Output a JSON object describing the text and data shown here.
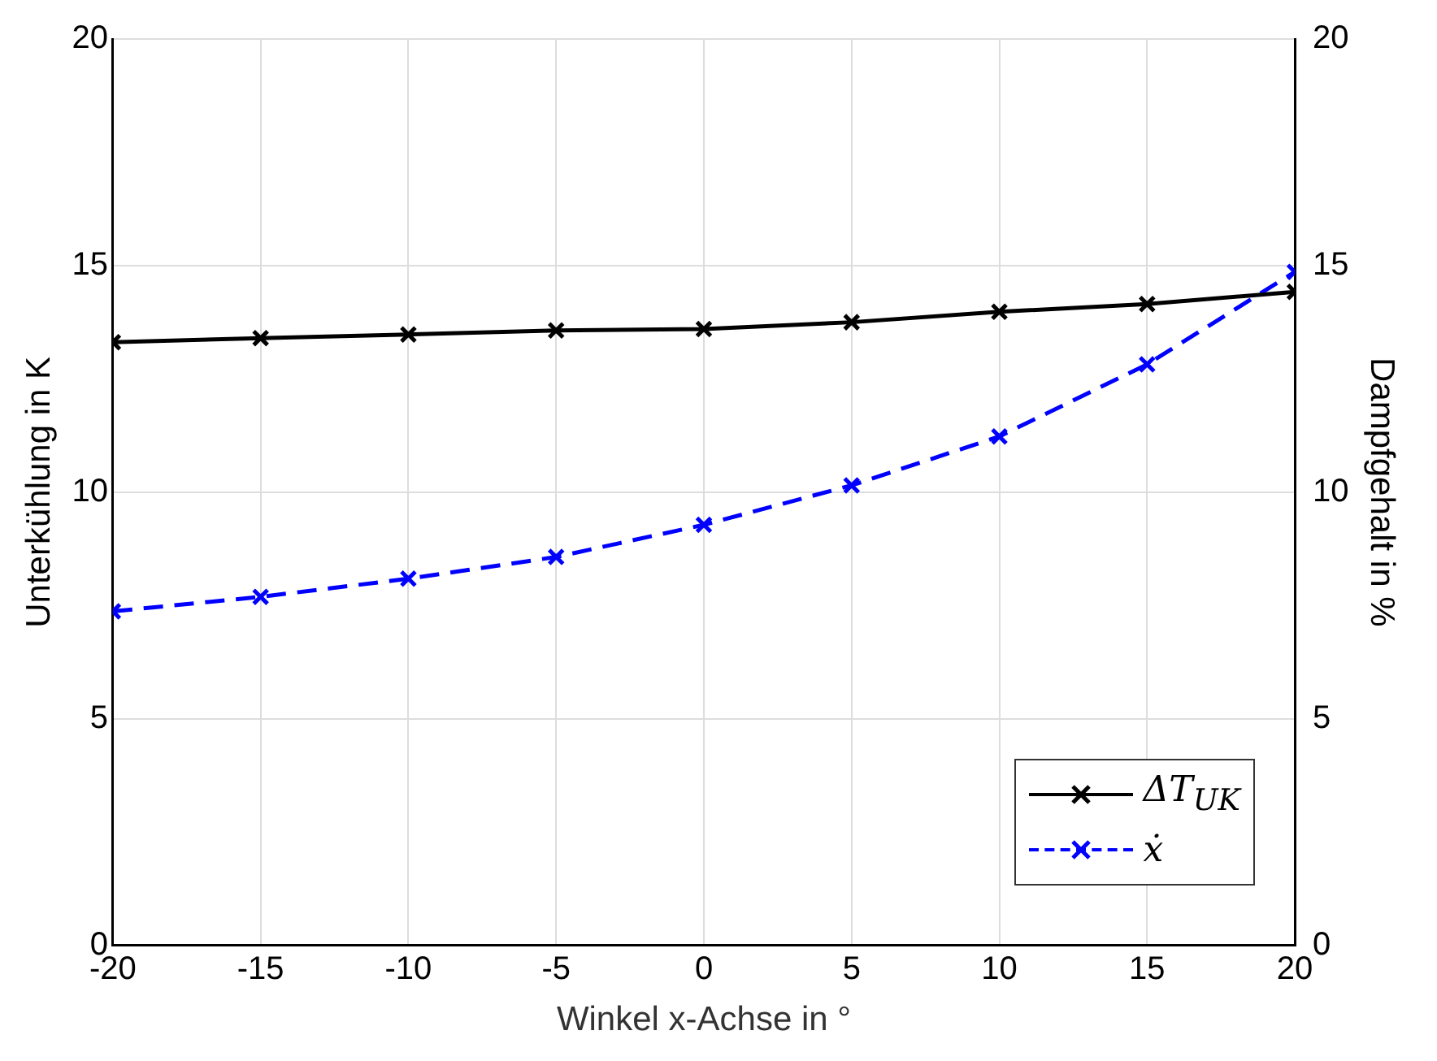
{
  "chart_data": {
    "type": "line",
    "xlabel": "Winkel x-Achse in °",
    "ylabel": "Unterkühlung in K",
    "y2label": "Dampfgehalt in %",
    "x": [
      -20,
      -15,
      -10,
      -5,
      0,
      5,
      10,
      15,
      20
    ],
    "series": [
      {
        "name": "ΔT$_{UK}$",
        "color": "#000000",
        "values": [
          13.31,
          13.4,
          13.48,
          13.57,
          13.6,
          13.75,
          13.98,
          14.15,
          14.42
        ],
        "marker": "cross",
        "line_style": "solid"
      },
      {
        "name": "ẋ",
        "color": "#0000ff",
        "values": [
          7.37,
          7.69,
          8.09,
          8.57,
          9.28,
          10.15,
          11.23,
          12.82,
          14.86
        ],
        "marker": "cross",
        "line_style": "dashed",
        "axis": "y2"
      }
    ],
    "xlim": [
      -20,
      20
    ],
    "xticks": [
      -20,
      -15,
      -10,
      -5,
      0,
      5,
      10,
      15,
      20
    ],
    "ylim": [
      0,
      20
    ],
    "yticks": [
      0,
      5,
      10,
      15,
      20
    ],
    "y2lim": [
      0,
      20
    ],
    "y2ticks": [
      0,
      5,
      10,
      15,
      20
    ],
    "grid": true,
    "legend": "bottom right"
  }
}
